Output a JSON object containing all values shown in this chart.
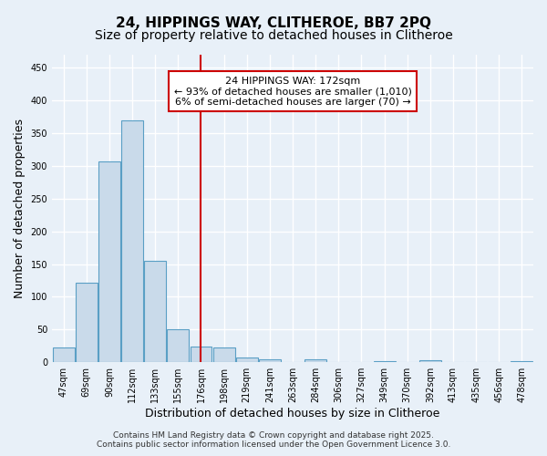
{
  "title1": "24, HIPPINGS WAY, CLITHEROE, BB7 2PQ",
  "title2": "Size of property relative to detached houses in Clitheroe",
  "xlabel": "Distribution of detached houses by size in Clitheroe",
  "ylabel": "Number of detached properties",
  "categories": [
    "47sqm",
    "69sqm",
    "90sqm",
    "112sqm",
    "133sqm",
    "155sqm",
    "176sqm",
    "198sqm",
    "219sqm",
    "241sqm",
    "263sqm",
    "284sqm",
    "306sqm",
    "327sqm",
    "349sqm",
    "370sqm",
    "392sqm",
    "413sqm",
    "435sqm",
    "456sqm",
    "478sqm"
  ],
  "values": [
    22,
    122,
    307,
    370,
    155,
    50,
    24,
    23,
    7,
    5,
    0,
    4,
    0,
    0,
    2,
    0,
    3,
    0,
    0,
    0,
    2
  ],
  "bar_color": "#c9daea",
  "bar_edge_color": "#5a9fc5",
  "vline_x_index": 6,
  "vline_color": "#cc0000",
  "annotation_line1": "24 HIPPINGS WAY: 172sqm",
  "annotation_line2": "← 93% of detached houses are smaller (1,010)",
  "annotation_line3": "6% of semi-detached houses are larger (70) →",
  "annotation_box_color": "#ffffff",
  "annotation_box_edge_color": "#cc0000",
  "ylim": [
    0,
    470
  ],
  "yticks": [
    0,
    50,
    100,
    150,
    200,
    250,
    300,
    350,
    400,
    450
  ],
  "bg_color": "#e8f0f8",
  "grid_color": "#ffffff",
  "footer1": "Contains HM Land Registry data © Crown copyright and database right 2025.",
  "footer2": "Contains public sector information licensed under the Open Government Licence 3.0.",
  "title1_fontsize": 11,
  "title2_fontsize": 10,
  "axis_label_fontsize": 9,
  "tick_fontsize": 7,
  "annotation_fontsize": 8,
  "footer_fontsize": 6.5
}
